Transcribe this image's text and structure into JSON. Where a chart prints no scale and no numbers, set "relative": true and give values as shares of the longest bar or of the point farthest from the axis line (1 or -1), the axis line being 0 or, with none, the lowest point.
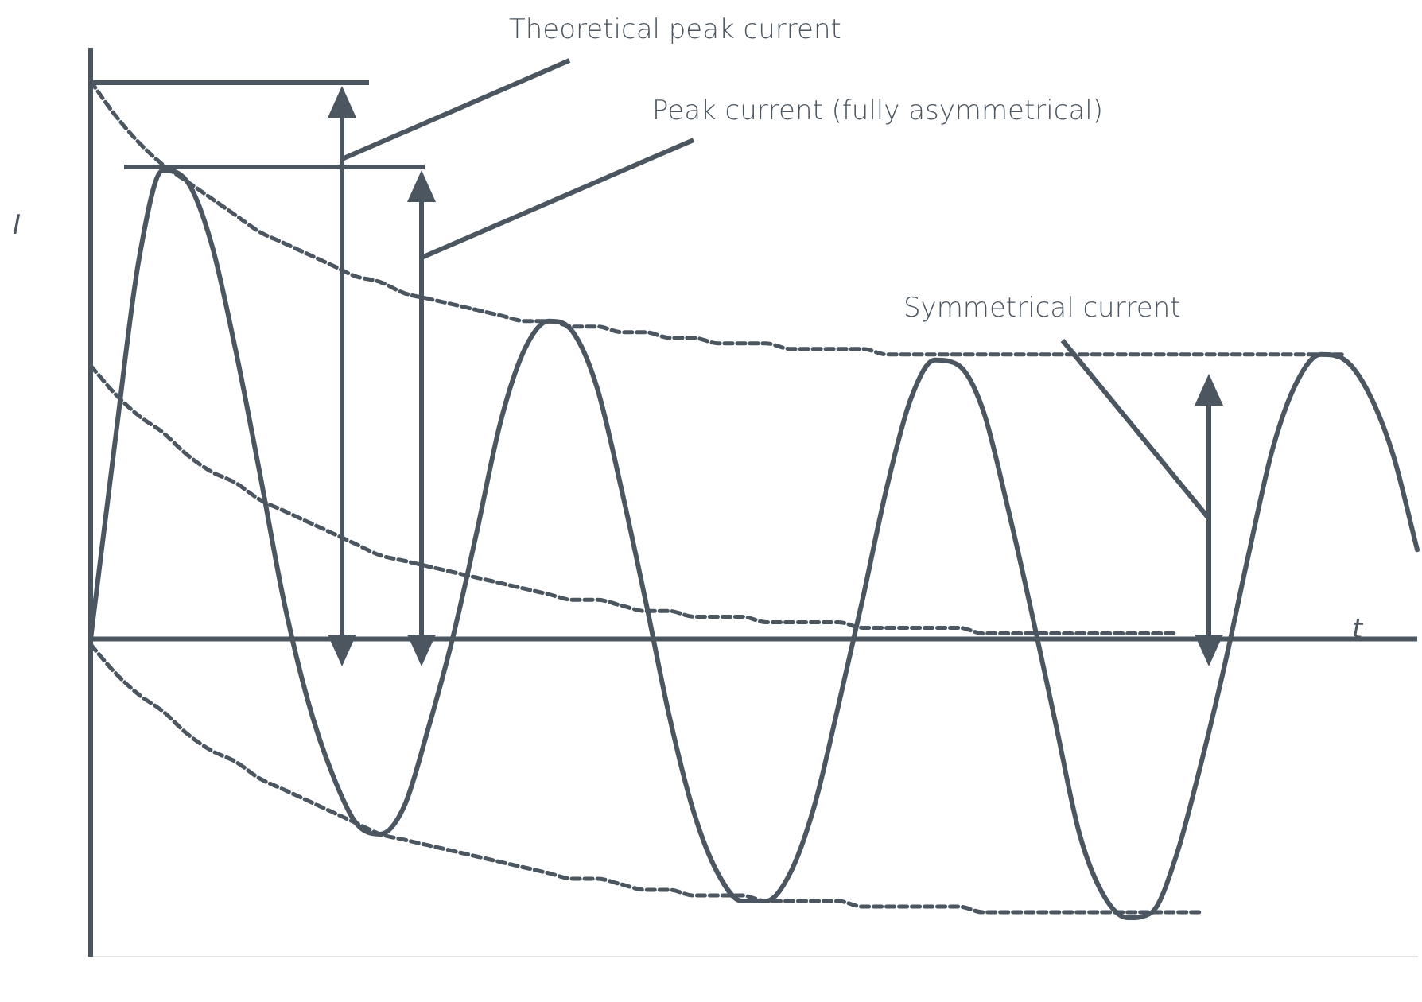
{
  "chart_data": {
    "type": "line",
    "relative": true,
    "xlabel": "t",
    "ylabel": "I",
    "marker": "none",
    "annotations": [
      "Theoretical peak current",
      "Peak current (fully asymmetrical)",
      "Symmetrical current"
    ],
    "categories": [
      null,
      null,
      null,
      null,
      null,
      null,
      null,
      null,
      null,
      null,
      null,
      null,
      null,
      null,
      null,
      null,
      null,
      null,
      null,
      null,
      null,
      null,
      null,
      null,
      null,
      null,
      null,
      null,
      null,
      null,
      null,
      null,
      null,
      null,
      null,
      null,
      null,
      null,
      null,
      null,
      null,
      null,
      null,
      null,
      null,
      null,
      null,
      null,
      null,
      null,
      null,
      null,
      null,
      null,
      null,
      null
    ],
    "series": [
      {
        "color": "#4b5661",
        "line_style": "solid",
        "values": [
          0,
          0.35,
          0.68,
          0.84,
          0.82,
          0.71,
          0.52,
          0.3,
          0.07,
          -0.11,
          -0.24,
          -0.33,
          -0.35,
          -0.3,
          -0.16,
          0,
          0.19,
          0.39,
          0.52,
          0.57,
          0.55,
          0.45,
          0.27,
          0.07,
          -0.14,
          -0.31,
          -0.42,
          -0.47,
          -0.47,
          -0.42,
          -0.3,
          -0.12,
          0.07,
          0.27,
          0.43,
          0.5,
          0.49,
          0.41,
          0.24,
          0.05,
          -0.15,
          -0.35,
          -0.46,
          -0.5,
          -0.49,
          -0.39,
          -0.23,
          -0.05,
          0.15,
          0.34,
          0.46,
          0.51,
          0.5,
          0.44,
          0.33,
          0.16
        ]
      },
      {
        "color": "#4b5661",
        "line_style": "dashed",
        "values": [
          1.0,
          0.94,
          0.89,
          0.85,
          0.82,
          0.79,
          0.76,
          0.73,
          0.71,
          0.69,
          0.67,
          0.65,
          0.64,
          0.62,
          0.61,
          0.6,
          0.59,
          0.58,
          0.57,
          0.57,
          0.56,
          0.56,
          0.55,
          0.55,
          0.54,
          0.54,
          0.53,
          0.53,
          0.53,
          0.52,
          0.52,
          0.52,
          0.52,
          0.51,
          0.51,
          0.51,
          0.51,
          0.51,
          0.51,
          0.51,
          0.51,
          0.51,
          0.51,
          0.51,
          0.51,
          0.51,
          0.51,
          0.51,
          0.51,
          0.51,
          0.51,
          0.51,
          0.51,
          null,
          null,
          null
        ]
      },
      {
        "color": "#4b5661",
        "line_style": "dashed",
        "values": [
          0.49,
          0.44,
          0.4,
          0.37,
          0.33,
          0.3,
          0.28,
          0.25,
          0.23,
          0.21,
          0.19,
          0.17,
          0.15,
          0.14,
          0.13,
          0.12,
          0.11,
          0.1,
          0.09,
          0.08,
          0.07,
          0.07,
          0.06,
          0.05,
          0.05,
          0.04,
          0.04,
          0.04,
          0.03,
          0.03,
          0.03,
          0.03,
          0.02,
          0.02,
          0.02,
          0.02,
          0.02,
          0.01,
          0.01,
          0.01,
          0.01,
          0.01,
          0.01,
          0.01,
          0.01,
          0.01,
          null,
          null,
          null,
          null,
          null,
          null,
          null,
          null,
          null,
          null
        ]
      },
      {
        "color": "#4b5661",
        "line_style": "dashed",
        "values": [
          -0.01,
          -0.06,
          -0.1,
          -0.13,
          -0.17,
          -0.2,
          -0.22,
          -0.25,
          -0.27,
          -0.29,
          -0.31,
          -0.33,
          -0.35,
          -0.36,
          -0.37,
          -0.38,
          -0.39,
          -0.4,
          -0.41,
          -0.42,
          -0.43,
          -0.43,
          -0.44,
          -0.45,
          -0.45,
          -0.46,
          -0.46,
          -0.46,
          -0.47,
          -0.47,
          -0.47,
          -0.47,
          -0.48,
          -0.48,
          -0.48,
          -0.48,
          -0.48,
          -0.49,
          -0.49,
          -0.49,
          -0.49,
          -0.49,
          -0.49,
          -0.49,
          -0.49,
          -0.49,
          -0.49,
          null,
          null,
          null,
          null,
          null,
          null,
          null,
          null,
          null
        ]
      }
    ]
  }
}
